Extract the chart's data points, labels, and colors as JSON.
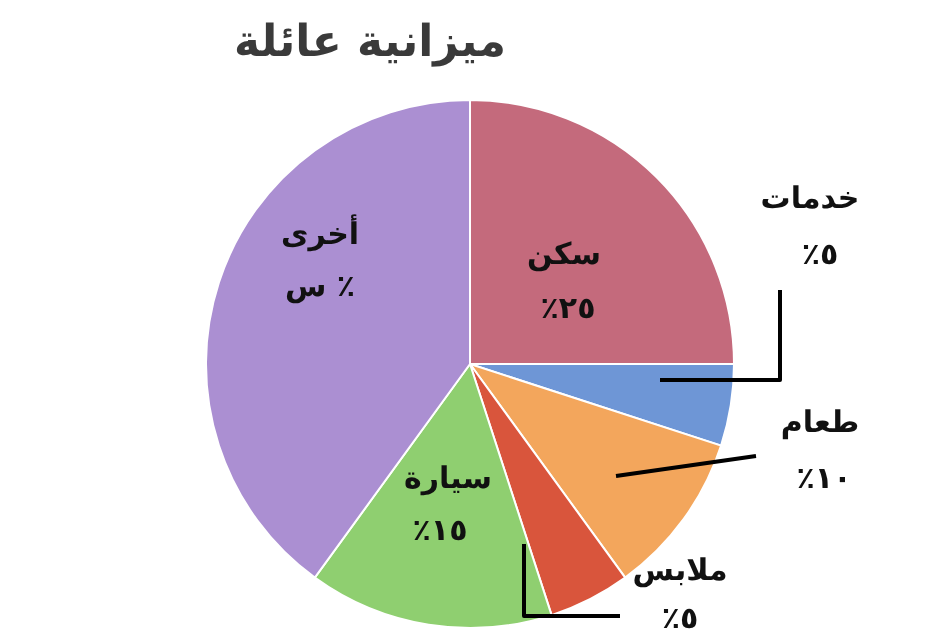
{
  "chart_data": {
    "type": "pie",
    "title": "ميزانية عائلة",
    "categories": [
      "سكن",
      "خدمات",
      "طعام",
      "ملابس",
      "سيارة",
      "أخرى"
    ],
    "values": [
      25,
      5,
      10,
      5,
      15,
      40
    ],
    "colors": [
      "#c46a7c",
      "#6e96d6",
      "#f3a65c",
      "#d9553c",
      "#8fcf70",
      "#ab8fd2"
    ],
    "value_labels": [
      "٢٥٪",
      "٥٪",
      "١٠٪",
      "٥٪",
      "١٥٪",
      "٪ س"
    ]
  }
}
